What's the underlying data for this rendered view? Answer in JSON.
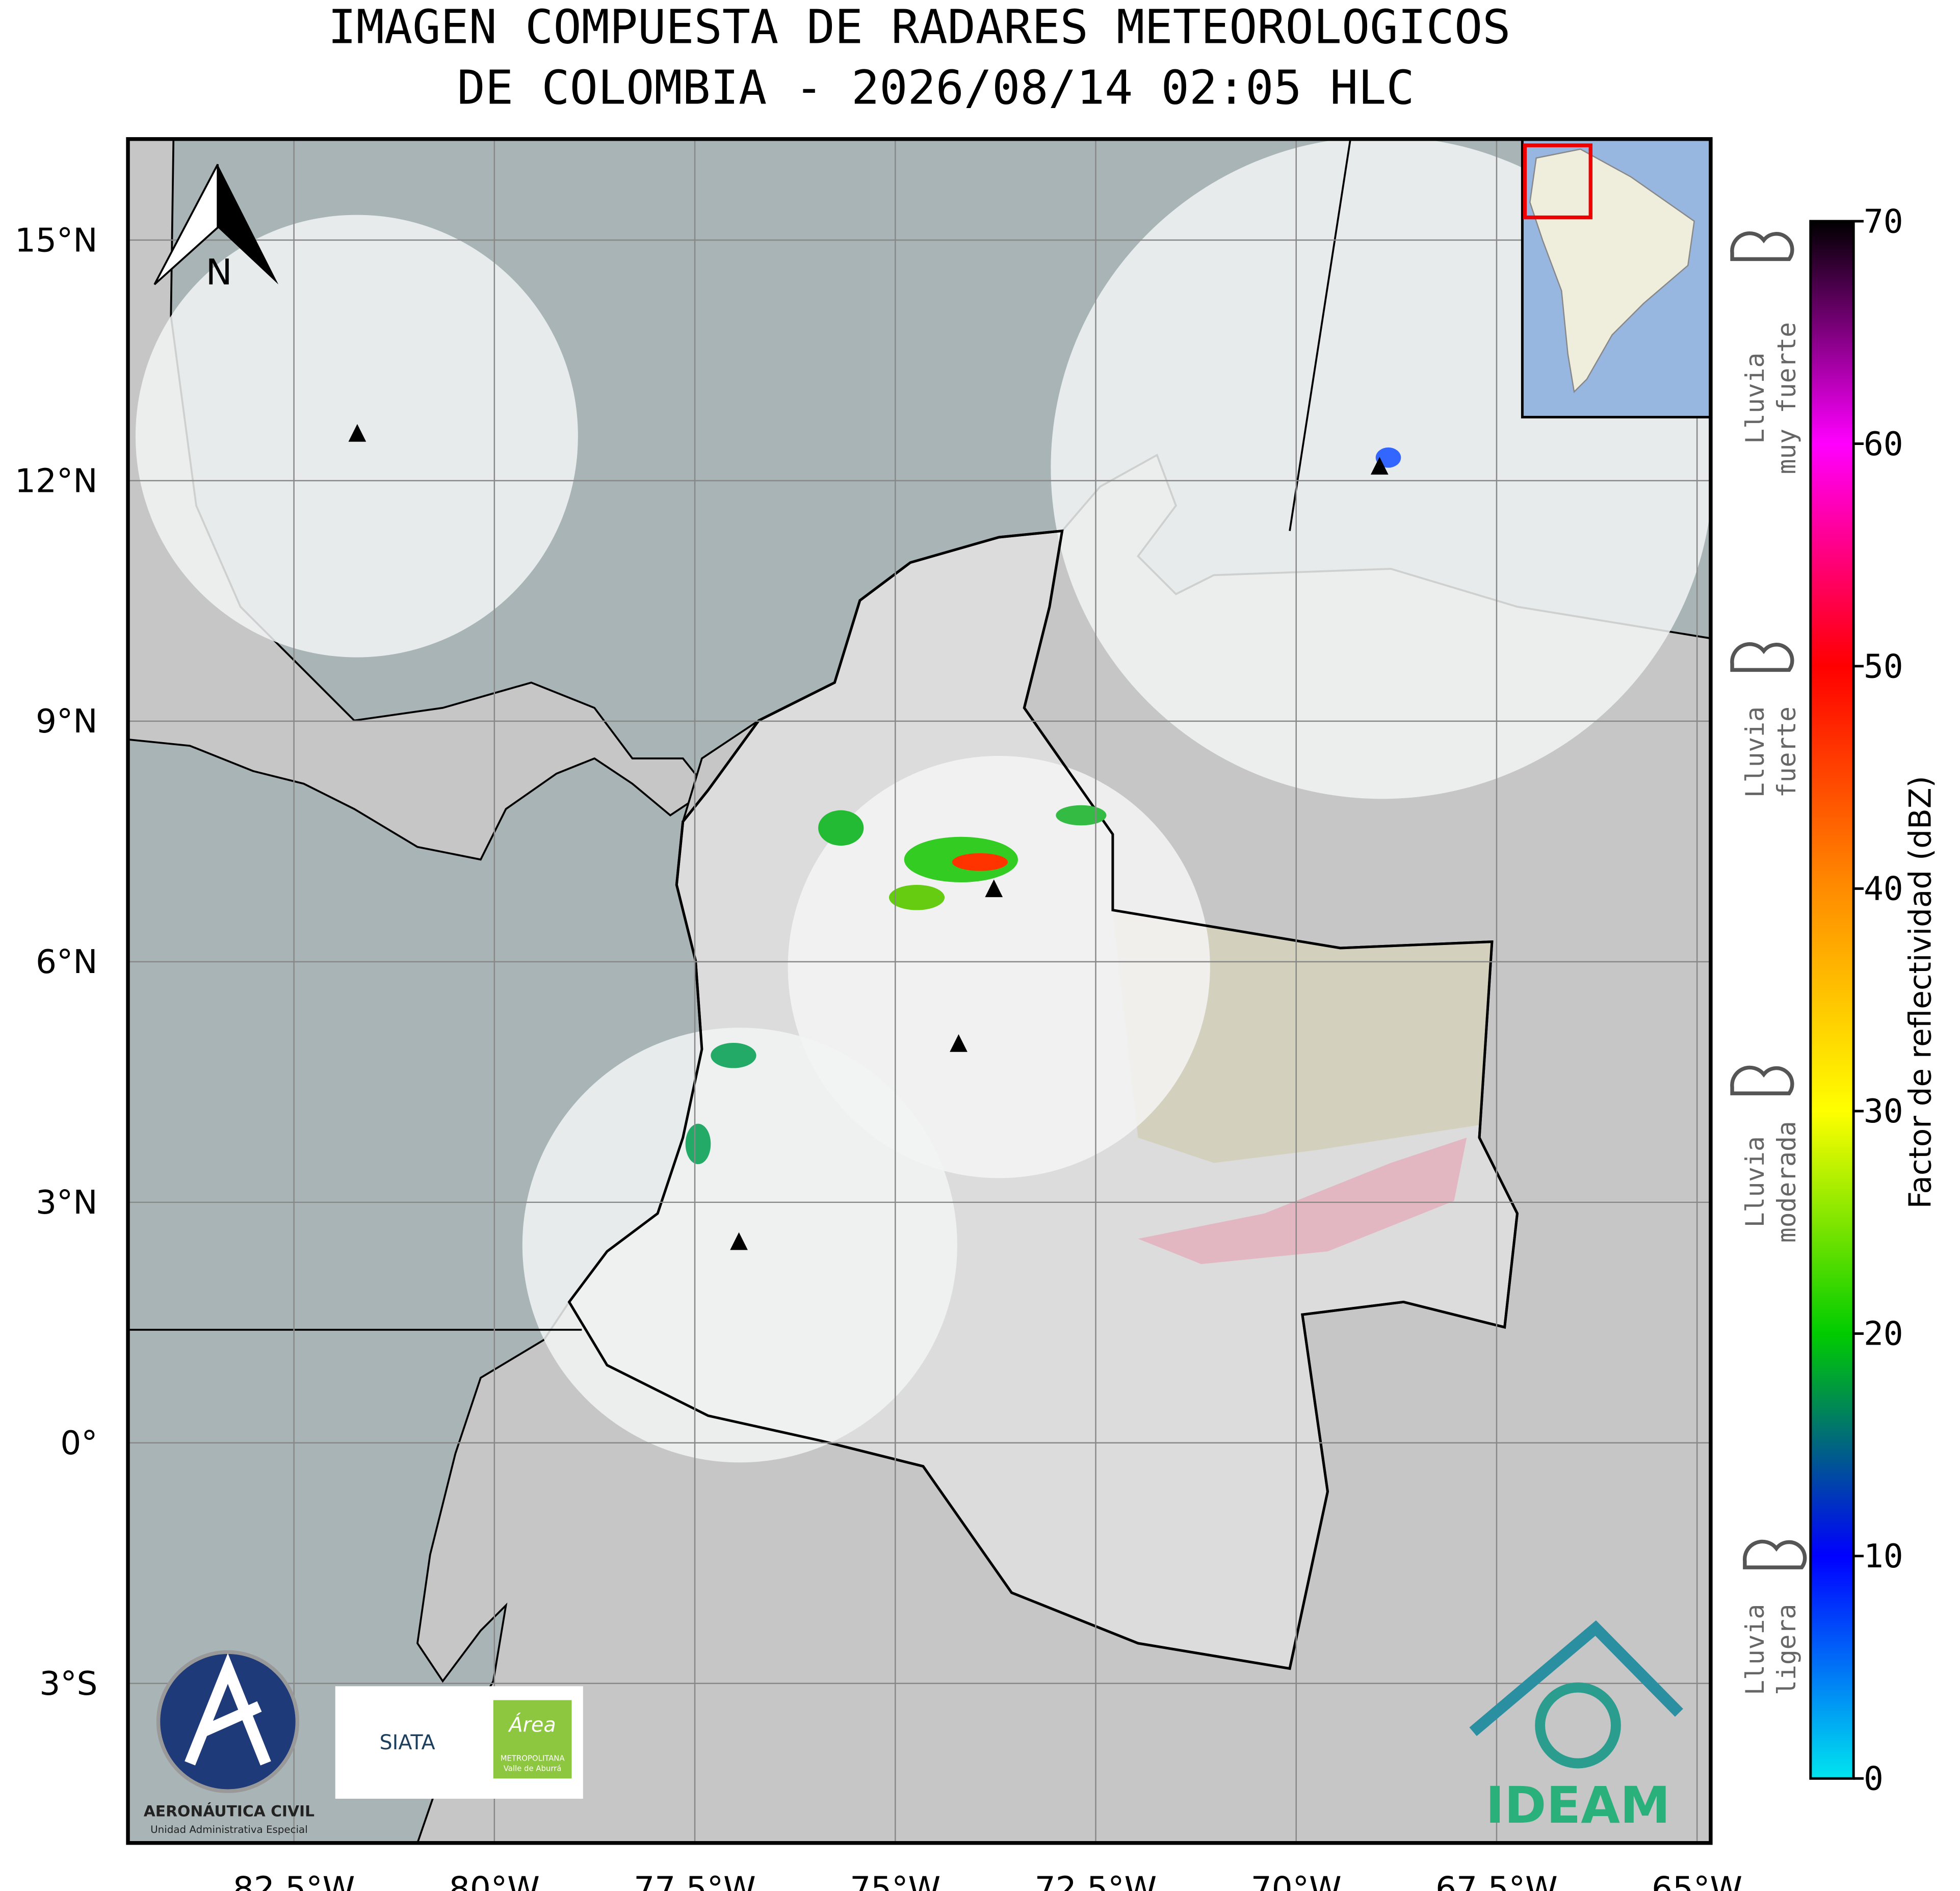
{
  "chart_data": {
    "type": "map",
    "title": [
      "IMAGEN COMPUESTA DE RADARES METEOROLOGICOS",
      "DE COLOMBIA - 2026/08/14 02:05 HLC"
    ],
    "xlim": [
      -84.57,
      -64.83
    ],
    "ylim": [
      -4.99,
      16.26
    ],
    "grid": true,
    "xticks": [
      {
        "value": -82.5,
        "label": "82.5°W"
      },
      {
        "value": -80,
        "label": "80°W"
      },
      {
        "value": -77.5,
        "label": "77.5°W"
      },
      {
        "value": -75,
        "label": "75°W"
      },
      {
        "value": -72.5,
        "label": "72.5°W"
      },
      {
        "value": -70,
        "label": "70°W"
      },
      {
        "value": -67.5,
        "label": "67.5°W"
      },
      {
        "value": -65,
        "label": "65°W"
      }
    ],
    "yticks": [
      {
        "value": 15,
        "label": "15°N"
      },
      {
        "value": 12,
        "label": "12°N"
      },
      {
        "value": 9,
        "label": "9°N"
      },
      {
        "value": 6,
        "label": "6°N"
      },
      {
        "value": 3,
        "label": "3°N"
      },
      {
        "value": 0,
        "label": "0°"
      },
      {
        "value": -3,
        "label": "3°S"
      }
    ],
    "radars": [
      {
        "lon": -81.71,
        "lat": 12.58
      },
      {
        "lon": -68.96,
        "lat": 12.17
      },
      {
        "lon": -73.77,
        "lat": 6.9
      },
      {
        "lon": -74.21,
        "lat": 4.97
      },
      {
        "lon": -76.95,
        "lat": 2.5
      }
    ],
    "radar_color": "#000000",
    "colorbar": {
      "label": "Factor de reflectividad (dBZ)",
      "clim": [
        0,
        70
      ],
      "ticks": [
        0,
        10,
        20,
        30,
        40,
        50,
        60,
        70
      ],
      "colors": [
        "#00e5ee",
        "#0000ff",
        "#00cc00",
        "#ffff00",
        "#ff8c00",
        "#ff0000",
        "#ff00ff",
        "#000000"
      ]
    },
    "legend": [
      [
        "Lluvia",
        "muy fuerte"
      ],
      [
        "Lluvia",
        "fuerte"
      ],
      [
        "Lluvia",
        "moderada"
      ],
      [
        "Lluvia",
        "ligera"
      ]
    ],
    "north_label": "N",
    "logos": {
      "aerocivil": "AERONÁUTICA CIVIL",
      "aerocivil_sub": "Unidad Administrativa Especial",
      "siata": "SIATA",
      "area": "Área",
      "area_sub1": "METROPOLITANA",
      "area_sub2": "Valle de Aburrá",
      "ideam": "IDEAM"
    }
  }
}
